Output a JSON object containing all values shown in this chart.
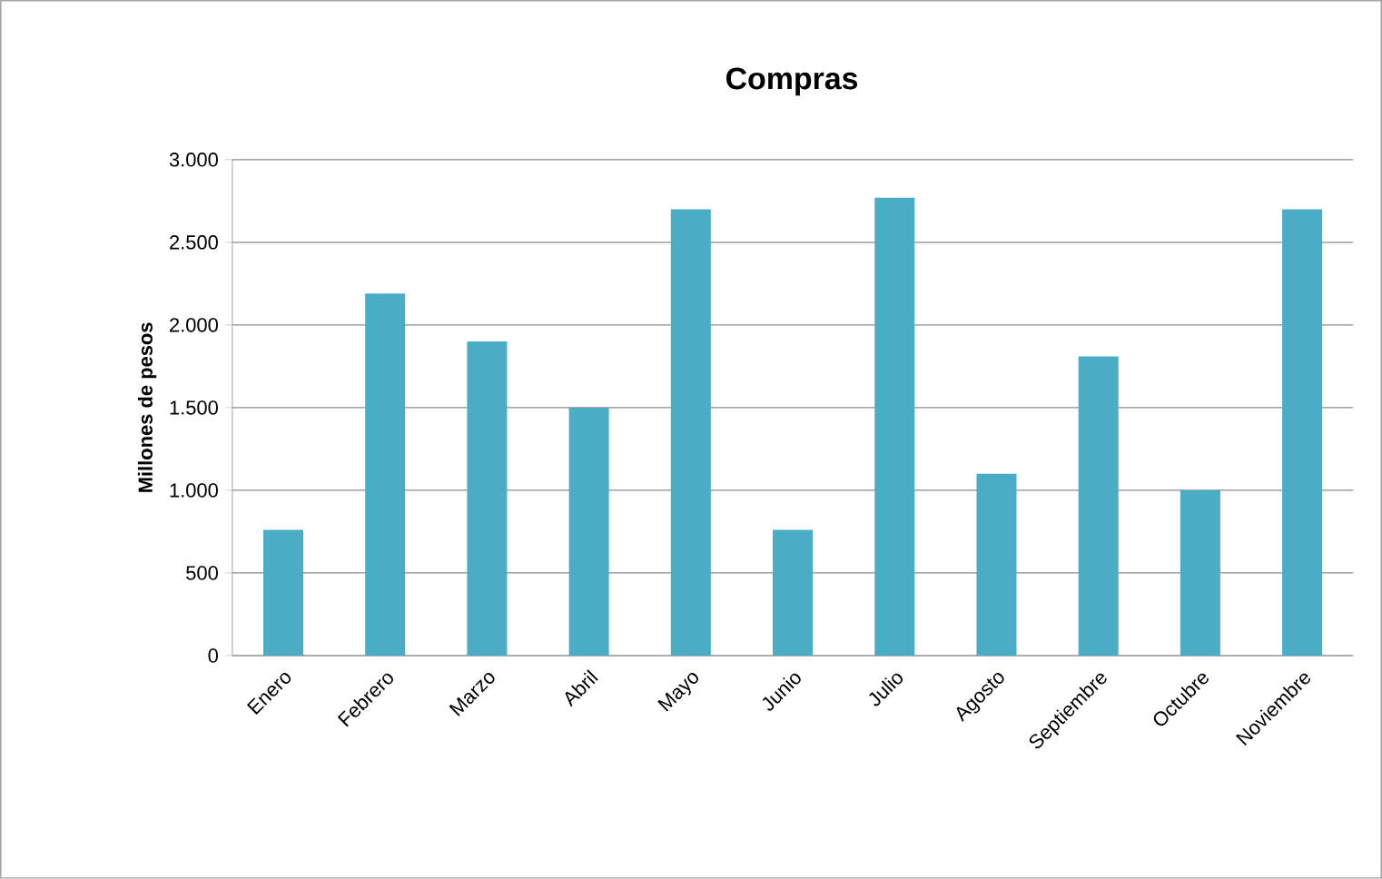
{
  "chart_data": {
    "type": "bar",
    "title": "Compras",
    "ylabel": "Millones de pesos",
    "categories": [
      "Enero",
      "Febrero",
      "Marzo",
      "Abril",
      "Mayo",
      "Junio",
      "Julio",
      "Agosto",
      "Septiembre",
      "Octubre",
      "Noviembre"
    ],
    "values": [
      760,
      2190,
      1900,
      1500,
      2700,
      760,
      2770,
      1100,
      1810,
      1000,
      2700
    ],
    "color": "#4bacc6",
    "ylim": [
      0,
      3000
    ],
    "yticks": [
      {
        "value": 0,
        "label": "0"
      },
      {
        "value": 500,
        "label": "500"
      },
      {
        "value": 1000,
        "label": "1.000"
      },
      {
        "value": 1500,
        "label": "1.500"
      },
      {
        "value": 2000,
        "label": "2.000"
      },
      {
        "value": 2500,
        "label": "2.500"
      },
      {
        "value": 3000,
        "label": "3.000"
      }
    ],
    "grid": "y"
  }
}
